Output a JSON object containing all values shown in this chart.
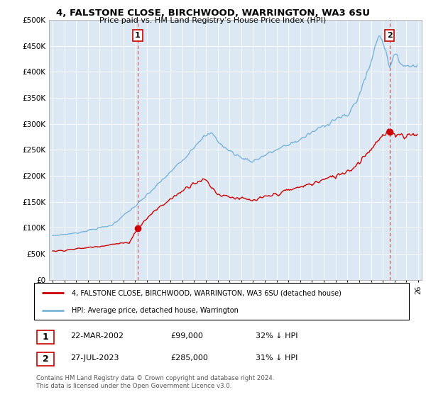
{
  "title": "4, FALSTONE CLOSE, BIRCHWOOD, WARRINGTON, WA3 6SU",
  "subtitle": "Price paid vs. HM Land Registry’s House Price Index (HPI)",
  "ylabel_ticks": [
    "£0",
    "£50K",
    "£100K",
    "£150K",
    "£200K",
    "£250K",
    "£300K",
    "£350K",
    "£400K",
    "£450K",
    "£500K"
  ],
  "ytick_values": [
    0,
    50000,
    100000,
    150000,
    200000,
    250000,
    300000,
    350000,
    400000,
    450000,
    500000
  ],
  "xlim_start": 1994.7,
  "xlim_end": 2026.3,
  "ylim": [
    0,
    500000
  ],
  "sale1_date": 2002.22,
  "sale1_price": 99000,
  "sale2_date": 2023.57,
  "sale2_price": 285000,
  "hpi_color": "#7ab4d8",
  "sale_color": "#cc0000",
  "annotation1_label": "1",
  "annotation2_label": "2",
  "legend_sale": "4, FALSTONE CLOSE, BIRCHWOOD, WARRINGTON, WA3 6SU (detached house)",
  "legend_hpi": "HPI: Average price, detached house, Warrington",
  "table_row1": [
    "1",
    "22-MAR-2002",
    "£99,000",
    "32% ↓ HPI"
  ],
  "table_row2": [
    "2",
    "27-JUL-2023",
    "£285,000",
    "31% ↓ HPI"
  ],
  "footer": "Contains HM Land Registry data © Crown copyright and database right 2024.\nThis data is licensed under the Open Government Licence v3.0.",
  "vline_color": "#cc0000",
  "background_color": "#ffffff",
  "plot_bg_color": "#dce9f5",
  "grid_color": "#ffffff"
}
